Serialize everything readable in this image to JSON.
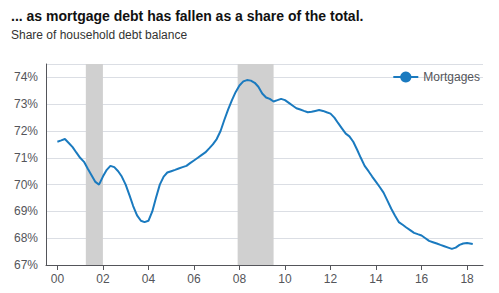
{
  "chart_data": {
    "type": "line",
    "title": "... as mortgage debt has fallen as a share of the total.",
    "subtitle": "Share of household debt balance",
    "x": [
      2000.0,
      2000.17,
      2000.33,
      2000.5,
      2000.67,
      2000.83,
      2001.0,
      2001.17,
      2001.33,
      2001.5,
      2001.67,
      2001.83,
      2002.0,
      2002.17,
      2002.33,
      2002.5,
      2002.67,
      2002.83,
      2003.0,
      2003.17,
      2003.33,
      2003.5,
      2003.67,
      2003.83,
      2004.0,
      2004.17,
      2004.33,
      2004.5,
      2004.67,
      2004.83,
      2005.0,
      2005.17,
      2005.33,
      2005.5,
      2005.67,
      2005.83,
      2006.0,
      2006.17,
      2006.33,
      2006.5,
      2006.67,
      2006.83,
      2007.0,
      2007.17,
      2007.33,
      2007.5,
      2007.67,
      2007.83,
      2008.0,
      2008.17,
      2008.33,
      2008.5,
      2008.67,
      2008.83,
      2009.0,
      2009.17,
      2009.33,
      2009.5,
      2009.67,
      2009.83,
      2010.0,
      2010.17,
      2010.33,
      2010.5,
      2010.67,
      2010.83,
      2011.0,
      2011.17,
      2011.33,
      2011.5,
      2011.67,
      2011.83,
      2012.0,
      2012.17,
      2012.33,
      2012.5,
      2012.67,
      2012.83,
      2013.0,
      2013.17,
      2013.33,
      2013.5,
      2013.67,
      2013.83,
      2014.0,
      2014.17,
      2014.33,
      2014.5,
      2014.67,
      2014.83,
      2015.0,
      2015.17,
      2015.33,
      2015.5,
      2015.67,
      2015.83,
      2016.0,
      2016.17,
      2016.33,
      2016.5,
      2016.67,
      2016.83,
      2017.0,
      2017.17,
      2017.33,
      2017.5,
      2017.67,
      2017.83,
      2018.0,
      2018.25
    ],
    "series": [
      {
        "name": "Mortgages",
        "color": "#1a7abf",
        "values": [
          71.6,
          71.65,
          71.7,
          71.55,
          71.4,
          71.2,
          71.0,
          70.85,
          70.6,
          70.35,
          70.1,
          70.0,
          70.3,
          70.55,
          70.7,
          70.65,
          70.5,
          70.3,
          70.0,
          69.6,
          69.2,
          68.85,
          68.65,
          68.6,
          68.65,
          69.0,
          69.5,
          70.0,
          70.3,
          70.45,
          70.5,
          70.55,
          70.6,
          70.65,
          70.7,
          70.8,
          70.9,
          71.0,
          71.1,
          71.2,
          71.35,
          71.5,
          71.7,
          72.0,
          72.4,
          72.8,
          73.15,
          73.45,
          73.7,
          73.85,
          73.9,
          73.88,
          73.8,
          73.65,
          73.4,
          73.25,
          73.2,
          73.1,
          73.15,
          73.2,
          73.15,
          73.05,
          72.95,
          72.85,
          72.8,
          72.75,
          72.7,
          72.72,
          72.75,
          72.78,
          72.75,
          72.7,
          72.65,
          72.5,
          72.3,
          72.1,
          71.9,
          71.8,
          71.6,
          71.3,
          71.0,
          70.7,
          70.5,
          70.3,
          70.1,
          69.9,
          69.7,
          69.4,
          69.1,
          68.85,
          68.6,
          68.5,
          68.4,
          68.3,
          68.2,
          68.15,
          68.1,
          68.0,
          67.9,
          67.85,
          67.8,
          67.75,
          67.7,
          67.65,
          67.6,
          67.65,
          67.75,
          67.8,
          67.82,
          67.78
        ]
      }
    ],
    "recession_bands": [
      [
        2001.25,
        2002.0
      ],
      [
        2007.92,
        2009.5
      ]
    ],
    "recession_color": "#d0d0d0",
    "xlim": [
      1999.5,
      2018.7
    ],
    "xticks": [
      {
        "value": 2000,
        "label": "00"
      },
      {
        "value": 2002,
        "label": "02"
      },
      {
        "value": 2004,
        "label": "04"
      },
      {
        "value": 2006,
        "label": "06"
      },
      {
        "value": 2008,
        "label": "08"
      },
      {
        "value": 2010,
        "label": "10"
      },
      {
        "value": 2012,
        "label": "12"
      },
      {
        "value": 2014,
        "label": "14"
      },
      {
        "value": 2016,
        "label": "16"
      },
      {
        "value": 2018,
        "label": "18"
      }
    ],
    "ylim": [
      67.0,
      74.5
    ],
    "yticks": [
      {
        "value": 67,
        "label": "67%"
      },
      {
        "value": 68,
        "label": "68%"
      },
      {
        "value": 69,
        "label": "69%"
      },
      {
        "value": 70,
        "label": "70%"
      },
      {
        "value": 71,
        "label": "71%"
      },
      {
        "value": 72,
        "label": "72%"
      },
      {
        "value": 73,
        "label": "73%"
      },
      {
        "value": 74,
        "label": "74%"
      }
    ],
    "grid": true,
    "legend": "upper right"
  }
}
